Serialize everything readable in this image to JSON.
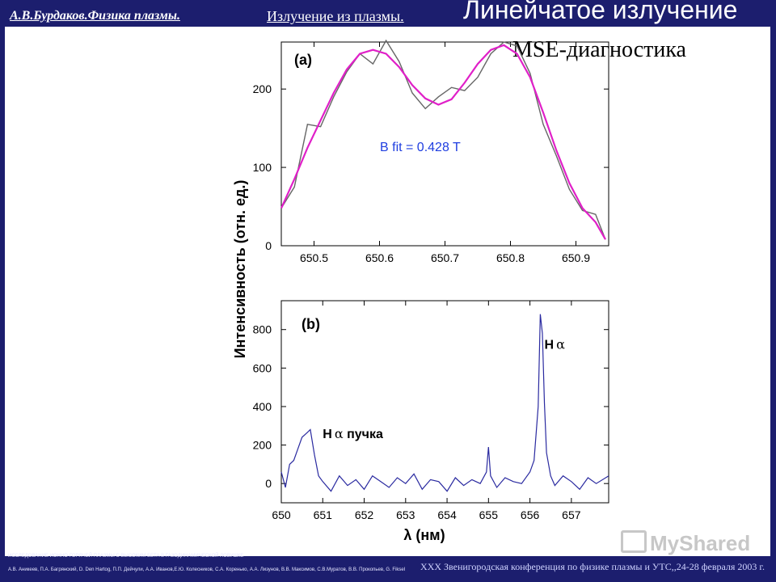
{
  "header": {
    "author": "А.В.Бурдаков.Физика плазмы.",
    "section": "Излучение из плазмы.",
    "title": "Линейчатое излучение"
  },
  "slide_subtitle": "MSE-диагностика",
  "footer": {
    "line1": "ИССЛЕДОВАНИЕ ИОННО-ГОРЯЧЕЙ ПЛАЗМЫ С ВЫСОКИМ БЕТА В ГАЗОДИНАМИЧЕСКОЙ ЛОВУШКЕ",
    "line2": "А.В. Аникеев, П.А. Багрянский, D. Den Hartog, П.П. Дейчули, А.А. Иванов,Е.Ю. Колесников, С.А. Коренько, А.А. Лизунов, В.В. Максимов, С.В.Муратов, В.В. Прокопьев, G. Fiksel",
    "conference": "XXX Звенигородская конференция по физике плазмы и УТС,,24-28 февраля 2003 г.",
    "watermark": "MyShared"
  },
  "colors": {
    "header_bg": "#1c1e6e",
    "fit_line": "#e020c8",
    "measured_line": "#666666",
    "spectrum_line": "#2a2aa0",
    "annotation_blue": "#1f3ee0"
  },
  "chart_data": [
    {
      "panel_label": "(a)",
      "type": "line",
      "xlim": [
        650.45,
        650.95
      ],
      "ylim": [
        0,
        260
      ],
      "x_ticks": [
        "650.5",
        "650.6",
        "650.7",
        "650.8",
        "650.9"
      ],
      "x_tick_values": [
        650.5,
        650.6,
        650.7,
        650.8,
        650.9
      ],
      "y_ticks": [
        "0",
        "100",
        "200"
      ],
      "y_tick_values": [
        0,
        100,
        200
      ],
      "annotation": "B fit = 0.428 T",
      "series": [
        {
          "role": "measured",
          "x": [
            650.45,
            650.47,
            650.49,
            650.51,
            650.53,
            650.55,
            650.57,
            650.59,
            650.61,
            650.63,
            650.65,
            650.67,
            650.69,
            650.71,
            650.73,
            650.75,
            650.77,
            650.79,
            650.81,
            650.83,
            650.85,
            650.87,
            650.89,
            650.91,
            650.93,
            650.945
          ],
          "y": [
            48,
            75,
            155,
            152,
            190,
            222,
            245,
            232,
            262,
            235,
            195,
            175,
            190,
            202,
            198,
            215,
            245,
            260,
            255,
            220,
            155,
            115,
            72,
            45,
            40,
            8
          ]
        },
        {
          "role": "fit",
          "x": [
            650.45,
            650.47,
            650.49,
            650.51,
            650.53,
            650.55,
            650.57,
            650.59,
            650.61,
            650.63,
            650.65,
            650.67,
            650.69,
            650.71,
            650.73,
            650.75,
            650.77,
            650.79,
            650.81,
            650.83,
            650.85,
            650.87,
            650.89,
            650.91,
            650.93,
            650.945
          ],
          "y": [
            48,
            85,
            125,
            160,
            195,
            225,
            245,
            250,
            245,
            228,
            205,
            188,
            180,
            187,
            208,
            232,
            250,
            256,
            245,
            215,
            170,
            122,
            80,
            48,
            30,
            8
          ]
        }
      ]
    },
    {
      "panel_label": "(b)",
      "type": "line",
      "xlim": [
        650,
        657.9
      ],
      "ylim": [
        -100,
        950
      ],
      "xlabel": "λ (нм)",
      "ylabel": "Интенсивность (отн. ед.)",
      "x_ticks": [
        "650",
        "651",
        "652",
        "653",
        "654",
        "655",
        "656",
        "657"
      ],
      "x_tick_values": [
        650,
        651,
        652,
        653,
        654,
        655,
        656,
        657
      ],
      "y_ticks": [
        "0",
        "200",
        "400",
        "600",
        "800"
      ],
      "y_tick_values": [
        0,
        200,
        400,
        600,
        800
      ],
      "annotations": [
        {
          "text": "H",
          "greek": "α",
          "suffix": " пучка",
          "x": 651.0,
          "y": 235
        },
        {
          "text": "H",
          "greek": "α",
          "suffix": "",
          "x": 656.35,
          "y": 700
        }
      ],
      "series": [
        {
          "role": "spectrum",
          "x": [
            650.0,
            650.1,
            650.2,
            650.3,
            650.4,
            650.5,
            650.6,
            650.7,
            650.8,
            650.9,
            651.0,
            651.2,
            651.4,
            651.6,
            651.8,
            652.0,
            652.2,
            652.4,
            652.6,
            652.8,
            653.0,
            653.2,
            653.4,
            653.6,
            653.8,
            654.0,
            654.2,
            654.4,
            654.6,
            654.8,
            654.95,
            655.0,
            655.05,
            655.2,
            655.4,
            655.6,
            655.8,
            656.0,
            656.1,
            656.2,
            656.25,
            656.3,
            656.35,
            656.4,
            656.5,
            656.6,
            656.8,
            657.0,
            657.2,
            657.4,
            657.6,
            657.9
          ],
          "y": [
            60,
            -20,
            100,
            120,
            180,
            240,
            260,
            280,
            150,
            40,
            10,
            -40,
            40,
            -10,
            20,
            -30,
            40,
            10,
            -20,
            30,
            0,
            50,
            -30,
            20,
            10,
            -40,
            30,
            -10,
            20,
            0,
            60,
            190,
            40,
            -20,
            30,
            10,
            0,
            60,
            120,
            400,
            880,
            780,
            420,
            160,
            40,
            -10,
            40,
            10,
            -30,
            30,
            0,
            40
          ]
        }
      ]
    }
  ]
}
